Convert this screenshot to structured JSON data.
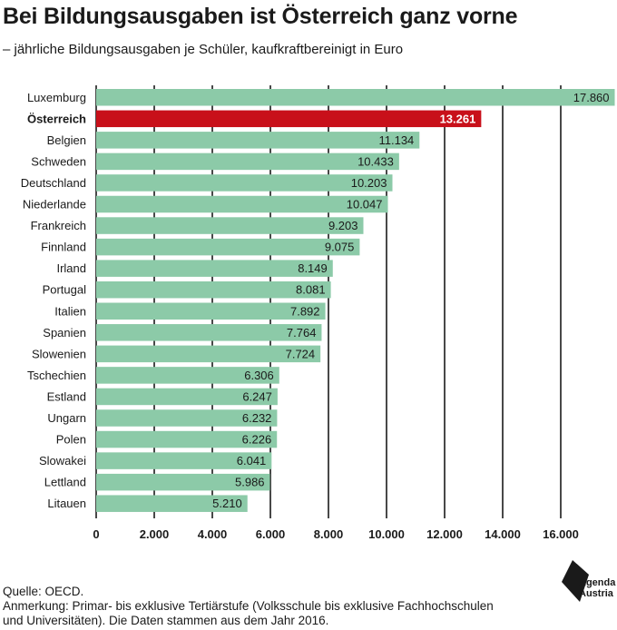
{
  "header": {
    "title": "Bei Bildungsausgaben ist Österreich ganz vorne",
    "subtitle": "– jährliche Bildungsausgaben je Schüler, kaufkraftbereinigt in Euro"
  },
  "chart_data": {
    "type": "bar",
    "orientation": "horizontal",
    "title": "",
    "xlabel": "",
    "ylabel": "",
    "xlim": [
      0,
      18000
    ],
    "xticks": [
      0,
      2000,
      4000,
      6000,
      8000,
      10000,
      12000,
      14000,
      16000
    ],
    "xtick_labels": [
      "0",
      "2.000",
      "4.000",
      "6.000",
      "8.000",
      "10.000",
      "12.000",
      "14.000",
      "16.000"
    ],
    "grid": "vertical",
    "categories": [
      "Luxemburg",
      "Österreich",
      "Belgien",
      "Schweden",
      "Deutschland",
      "Niederlande",
      "Frankreich",
      "Finnland",
      "Irland",
      "Portugal",
      "Italien",
      "Spanien",
      "Slowenien",
      "Tschechien",
      "Estland",
      "Ungarn",
      "Polen",
      "Slowakei",
      "Lettland",
      "Litauen"
    ],
    "values": [
      17860,
      13261,
      11134,
      10433,
      10203,
      10047,
      9203,
      9075,
      8149,
      8081,
      7892,
      7764,
      7724,
      6306,
      6247,
      6232,
      6226,
      6041,
      5986,
      5210
    ],
    "value_labels": [
      "17.860",
      "13.261",
      "11.134",
      "10.433",
      "10.203",
      "10.047",
      "9.203",
      "9.075",
      "8.149",
      "8.081",
      "7.892",
      "7.764",
      "7.724",
      "6.306",
      "6.247",
      "6.232",
      "6.226",
      "6.041",
      "5.986",
      "5.210"
    ],
    "highlight": "Österreich",
    "colors": {
      "bar": "#8ccaa8",
      "highlight": "#c8101a",
      "grid": "#1a1a1a"
    }
  },
  "footer": {
    "source": "Quelle: OECD.",
    "note_line1": "Anmerkung: Primar- bis exklusive Tertiärstufe (Volksschule bis exklusive Fachhochschulen",
    "note_line2": "und Universitäten). Die Daten stammen aus dem Jahr 2016."
  },
  "logo": {
    "line1": "Agenda",
    "line2": "Austria",
    "icon": "agenda-austria-logo-icon"
  }
}
